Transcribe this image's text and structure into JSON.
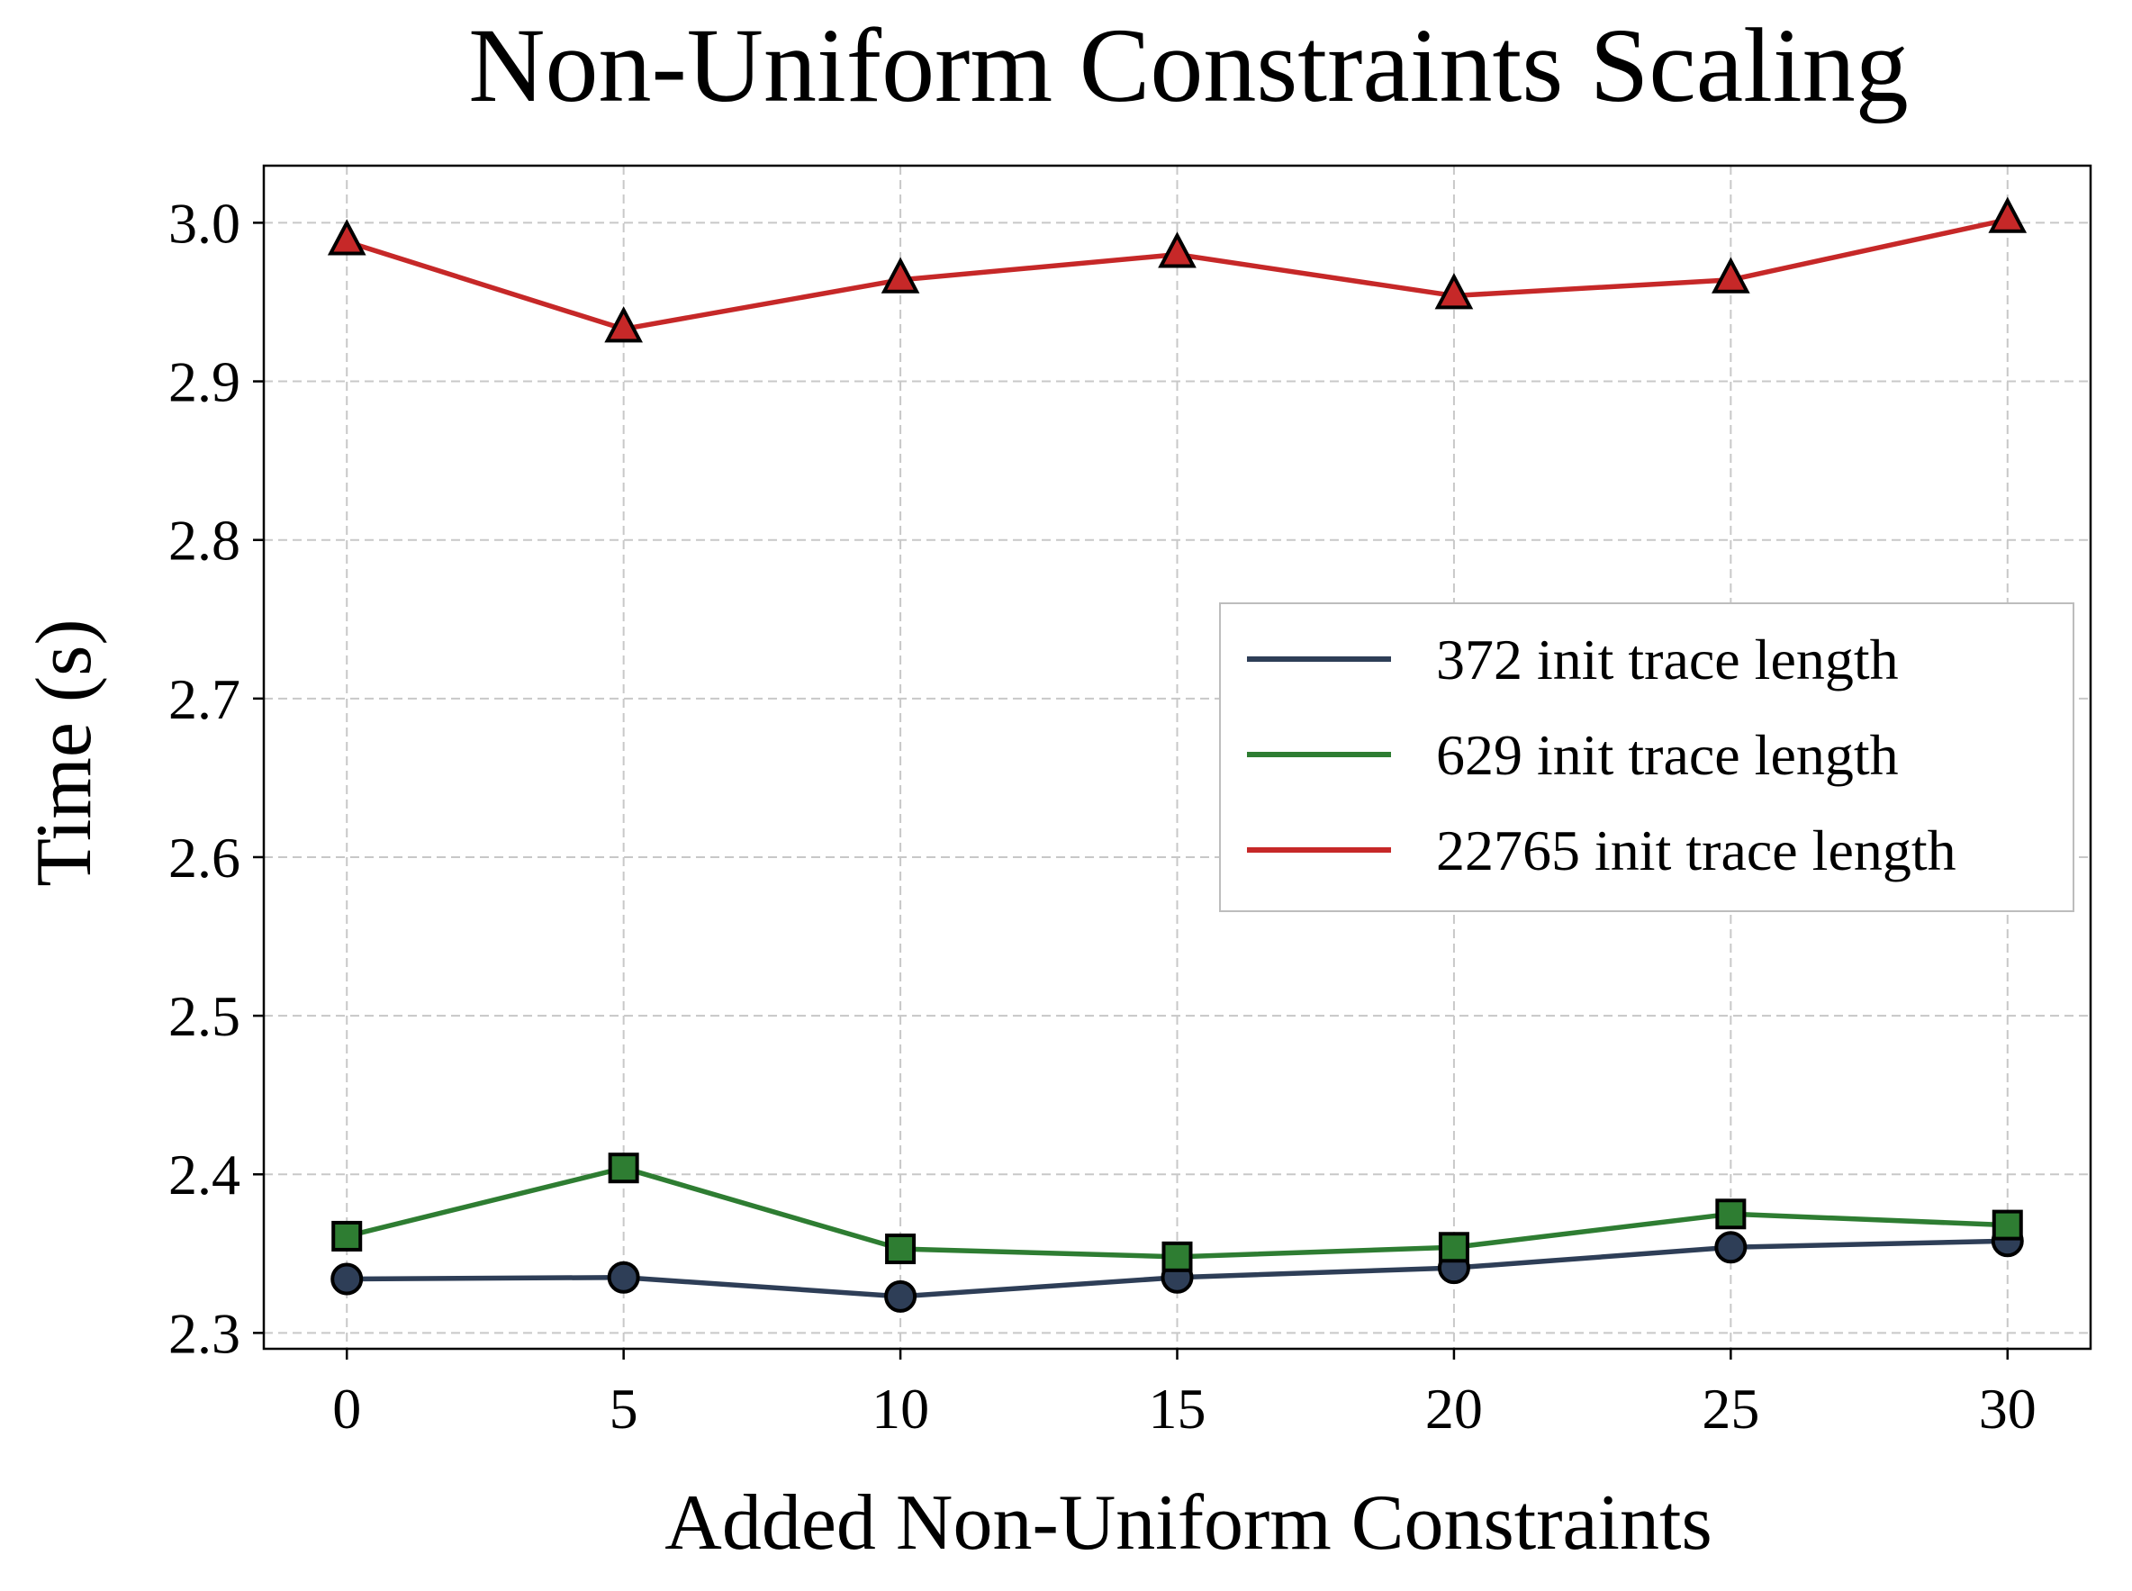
{
  "chart_data": {
    "type": "line",
    "title": "Non-Uniform Constraints Scaling",
    "xlabel": "Added Non-Uniform Constraints",
    "ylabel": "Time (s)",
    "x": [
      0,
      5,
      10,
      15,
      20,
      25,
      30
    ],
    "xlim": [
      -1.5,
      31.5
    ],
    "ylim": [
      2.29,
      3.036
    ],
    "xticks": [
      0,
      5,
      10,
      15,
      20,
      25,
      30
    ],
    "yticks": [
      2.3,
      2.4,
      2.5,
      2.6,
      2.7,
      2.8,
      2.9,
      3.0
    ],
    "ytick_labels": [
      "2.3",
      "2.4",
      "2.5",
      "2.6",
      "2.7",
      "2.8",
      "2.9",
      "3.0"
    ],
    "grid": true,
    "legend_position": "center-right",
    "series": [
      {
        "name": "372 init trace length",
        "color": "#2e3e57",
        "marker": "circle",
        "values": [
          2.334,
          2.335,
          2.323,
          2.335,
          2.341,
          2.354,
          2.358
        ]
      },
      {
        "name": "629 init trace length",
        "color": "#2e7d32",
        "marker": "square",
        "values": [
          2.361,
          2.404,
          2.353,
          2.348,
          2.354,
          2.375,
          2.368
        ]
      },
      {
        "name": "22765 init trace length",
        "color": "#c62828",
        "marker": "triangle",
        "values": [
          2.988,
          2.933,
          2.964,
          2.98,
          2.954,
          2.964,
          3.002
        ]
      }
    ]
  }
}
